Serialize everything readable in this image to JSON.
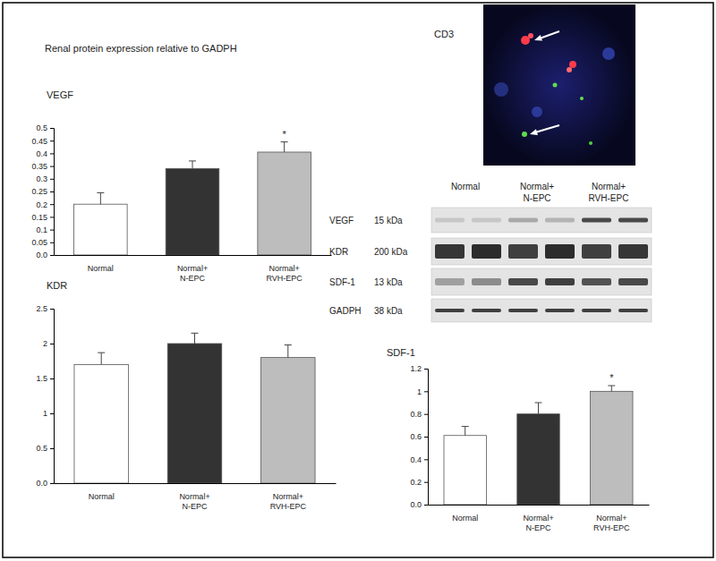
{
  "figure_title": "Renal protein expression relative to GADPH",
  "chart_data": [
    {
      "type": "bar",
      "title": "VEGF",
      "categories": [
        "Normal",
        "Normal+ N-EPC",
        "Normal+ RVH-EPC"
      ],
      "values": [
        0.2,
        0.34,
        0.405
      ],
      "errors": [
        0.045,
        0.03,
        0.04
      ],
      "colors": [
        "#ffffff",
        "#333333",
        "#bdbdbd"
      ],
      "ylim": [
        0,
        0.5
      ],
      "yticks": [
        {
          "value": 0,
          "label": "0.0"
        },
        0.05,
        0.1,
        0.15,
        0.2,
        0.25,
        0.3,
        0.35,
        0.4,
        0.45,
        0.5
      ],
      "annotations": [
        {
          "category": "Normal+ RVH-EPC",
          "text": "*"
        }
      ]
    },
    {
      "type": "bar",
      "title": "KDR",
      "categories": [
        "Normal",
        "Normal+ N-EPC",
        "Normal+ RVH-EPC"
      ],
      "values": [
        1.7,
        2.0,
        1.8
      ],
      "errors": [
        0.17,
        0.15,
        0.18
      ],
      "colors": [
        "#ffffff",
        "#333333",
        "#bdbdbd"
      ],
      "ylim": [
        0,
        2.5
      ],
      "yticks": [
        {
          "value": 0,
          "label": "0.0"
        },
        0.5,
        1,
        1.5,
        2,
        2.5
      ]
    },
    {
      "type": "bar",
      "title": "SDF-1",
      "categories": [
        "Normal",
        "Normal+ N-EPC",
        "Normal+ RVH-EPC"
      ],
      "values": [
        0.61,
        0.8,
        1.0
      ],
      "errors": [
        0.08,
        0.1,
        0.05
      ],
      "colors": [
        "#ffffff",
        "#333333",
        "#bdbdbd"
      ],
      "ylim": [
        0,
        1.2
      ],
      "yticks": [
        {
          "value": 0,
          "label": "0.0"
        },
        0.2,
        0.4,
        0.6,
        0.8,
        1,
        1.2
      ],
      "annotations": [
        {
          "category": "Normal+ RVH-EPC",
          "text": "*"
        }
      ]
    }
  ],
  "blot": {
    "lanes": [
      "Normal",
      "Normal+ N-EPC",
      "Normal+ RVH-EPC"
    ],
    "rows": [
      {
        "protein": "VEGF",
        "size": "15 kDa"
      },
      {
        "protein": "KDR",
        "size": "200 kDa"
      },
      {
        "protein": "SDF-1",
        "size": "13 kDa"
      },
      {
        "protein": "GADPH",
        "size": "38 kDa"
      }
    ]
  },
  "micrograph": {
    "label": "CD3"
  }
}
